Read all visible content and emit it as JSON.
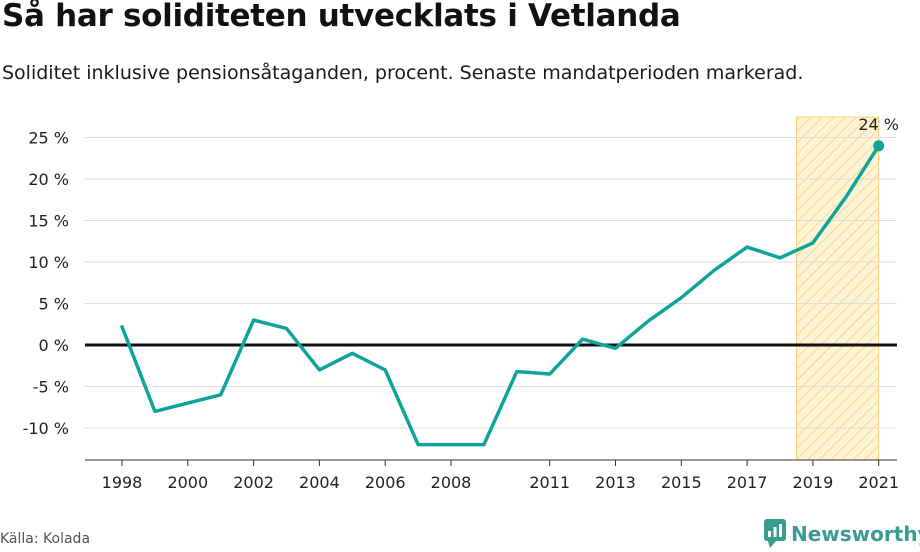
{
  "header": {
    "title": "Så har soliditeten utvecklats i Vetlanda",
    "subtitle": "Soliditet inklusive pensionsåtaganden, procent. Senaste mandatperioden markerad."
  },
  "footer": {
    "source": "Källa: Kolada",
    "brand": "Newsworthy"
  },
  "colors": {
    "line": "#0fa49a",
    "zero_line": "#111111",
    "grid": "#dddddd",
    "highlight_fill": "#fff3d6",
    "highlight_stroke": "#f7d27a",
    "brand": "#3a9c8f"
  },
  "chart_data": {
    "type": "line",
    "title": "Så har soliditeten utvecklats i Vetlanda",
    "subtitle": "Soliditet inklusive pensionsåtaganden, procent. Senaste mandatperioden markerad.",
    "xlabel": "",
    "ylabel": "",
    "x": [
      1998,
      1999,
      2000,
      2001,
      2002,
      2003,
      2004,
      2005,
      2006,
      2007,
      2008,
      2009,
      2010,
      2011,
      2012,
      2013,
      2014,
      2015,
      2016,
      2017,
      2018,
      2019,
      2020,
      2021
    ],
    "series": [
      {
        "name": "",
        "values": [
          2.2,
          -8.0,
          -7.0,
          -6.0,
          3.0,
          2.0,
          -3.0,
          -1.0,
          -3.0,
          -12.0,
          -12.0,
          -12.0,
          -3.2,
          -3.5,
          0.7,
          -0.4,
          2.9,
          5.7,
          9.0,
          11.8,
          10.5,
          12.3,
          17.8,
          24.0
        ]
      }
    ],
    "xlim": [
      1997,
      2022
    ],
    "ylim": [
      -14,
      27
    ],
    "x_ticks": [
      1998,
      2000,
      2002,
      2004,
      2006,
      2008,
      2011,
      2013,
      2015,
      2017,
      2019,
      2021
    ],
    "x_tick_labels": [
      "1998",
      "2000",
      "2002",
      "2004",
      "2006",
      "2008",
      "2011",
      "2013",
      "2015",
      "2017",
      "2019",
      "2021"
    ],
    "y_ticks": [
      -10,
      -5,
      0,
      5,
      10,
      15,
      20,
      25
    ],
    "y_tick_labels": [
      "-10 %",
      "-5 %",
      "0 %",
      "5 %",
      "10 %",
      "15 %",
      "20 %",
      "25 %"
    ],
    "highlight_range": [
      2018.5,
      2021
    ],
    "end_label": "24 %",
    "grid": true,
    "legend": "none"
  }
}
